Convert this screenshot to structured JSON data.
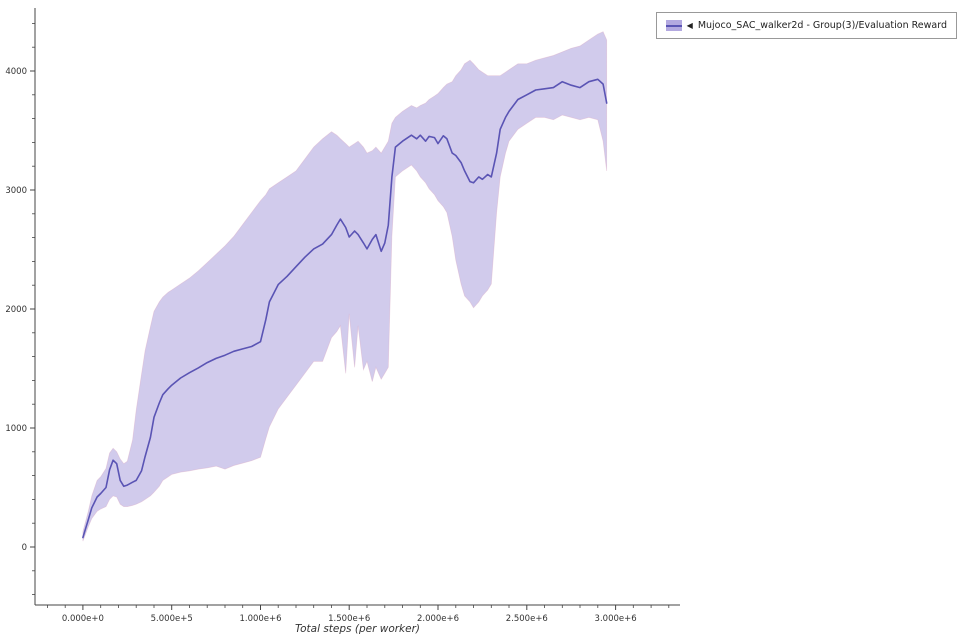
{
  "page": {
    "background": "#ffffff"
  },
  "legend": {
    "marker": "◀",
    "label": "Mujoco_SAC_walker2d - Group(3)/Evaluation Reward"
  },
  "axis": {
    "color": "#444444",
    "tick_label_color": "#333333"
  },
  "chart_data": {
    "type": "line",
    "title": "",
    "xlabel": "Total steps (per worker)",
    "ylabel": "",
    "grid": false,
    "legend_position": "top-right-outside",
    "xlim": [
      -270000,
      3363000
    ],
    "ylim": [
      -487,
      4529
    ],
    "xticks": {
      "values": [
        0,
        500000,
        1000000,
        1500000,
        2000000,
        2500000,
        3000000
      ],
      "labels": [
        "0.000e+0",
        "5.000e+5",
        "1.000e+6",
        "1.500e+6",
        "2.000e+6",
        "2.500e+6",
        "3.000e+6"
      ]
    },
    "yticks": {
      "values": [
        0,
        1000,
        2000,
        3000,
        4000
      ],
      "labels": [
        "0",
        "1000",
        "2000",
        "3000",
        "4000"
      ]
    },
    "minor_x_step": 100000,
    "minor_y_step": 200,
    "series": [
      {
        "name": "Mujoco_SAC_walker2d - Group(3)/Evaluation Reward",
        "color": "#5a54b4",
        "band_color": "#b3a9e0",
        "band_opacity": 0.6,
        "band_edge_color": "#d9a8c4",
        "x": [
          0,
          30000,
          50000,
          80000,
          100000,
          130000,
          150000,
          170000,
          190000,
          210000,
          230000,
          250000,
          280000,
          300000,
          330000,
          350000,
          380000,
          400000,
          430000,
          450000,
          480000,
          500000,
          550000,
          600000,
          650000,
          700000,
          750000,
          800000,
          850000,
          900000,
          950000,
          1000000,
          1030000,
          1050000,
          1100000,
          1150000,
          1200000,
          1250000,
          1300000,
          1350000,
          1400000,
          1430000,
          1450000,
          1480000,
          1500000,
          1530000,
          1550000,
          1580000,
          1600000,
          1630000,
          1650000,
          1680000,
          1700000,
          1720000,
          1740000,
          1760000,
          1800000,
          1850000,
          1880000,
          1900000,
          1930000,
          1950000,
          1980000,
          2000000,
          2030000,
          2050000,
          2080000,
          2100000,
          2130000,
          2150000,
          2180000,
          2200000,
          2230000,
          2250000,
          2280000,
          2300000,
          2330000,
          2350000,
          2380000,
          2400000,
          2450000,
          2500000,
          2550000,
          2600000,
          2650000,
          2700000,
          2750000,
          2800000,
          2850000,
          2900000,
          2930000,
          2950000
        ],
        "mean": [
          80,
          230,
          330,
          420,
          450,
          500,
          650,
          730,
          700,
          560,
          510,
          520,
          545,
          560,
          640,
          760,
          920,
          1090,
          1210,
          1280,
          1330,
          1360,
          1420,
          1465,
          1505,
          1550,
          1585,
          1612,
          1645,
          1665,
          1685,
          1725,
          1910,
          2060,
          2205,
          2275,
          2355,
          2435,
          2505,
          2545,
          2625,
          2705,
          2755,
          2685,
          2605,
          2655,
          2625,
          2555,
          2505,
          2585,
          2625,
          2485,
          2555,
          2705,
          3110,
          3360,
          3410,
          3460,
          3430,
          3460,
          3410,
          3450,
          3440,
          3390,
          3455,
          3430,
          3310,
          3290,
          3230,
          3160,
          3070,
          3060,
          3110,
          3090,
          3130,
          3110,
          3310,
          3510,
          3610,
          3660,
          3760,
          3800,
          3840,
          3850,
          3860,
          3910,
          3880,
          3860,
          3910,
          3930,
          3890,
          3730
        ],
        "lower": [
          50,
          170,
          240,
          300,
          320,
          340,
          400,
          430,
          420,
          360,
          340,
          340,
          350,
          360,
          380,
          400,
          430,
          460,
          510,
          560,
          590,
          610,
          630,
          640,
          655,
          665,
          680,
          655,
          685,
          705,
          725,
          755,
          910,
          1010,
          1160,
          1260,
          1360,
          1460,
          1560,
          1560,
          1760,
          1810,
          1860,
          1460,
          1960,
          1510,
          1860,
          1490,
          1560,
          1390,
          1510,
          1410,
          1460,
          1510,
          2610,
          3110,
          3160,
          3210,
          3160,
          3110,
          3060,
          3010,
          2960,
          2910,
          2860,
          2810,
          2610,
          2410,
          2210,
          2110,
          2060,
          2010,
          2060,
          2110,
          2160,
          2210,
          2810,
          3110,
          3310,
          3410,
          3510,
          3560,
          3610,
          3610,
          3590,
          3630,
          3610,
          3590,
          3610,
          3590,
          3410,
          3160
        ],
        "upper": [
          130,
          300,
          430,
          560,
          590,
          660,
          790,
          830,
          800,
          740,
          700,
          720,
          900,
          1150,
          1450,
          1650,
          1850,
          1980,
          2060,
          2100,
          2140,
          2160,
          2210,
          2260,
          2320,
          2390,
          2460,
          2530,
          2610,
          2710,
          2810,
          2910,
          2960,
          3010,
          3060,
          3110,
          3160,
          3260,
          3360,
          3430,
          3490,
          3460,
          3430,
          3390,
          3360,
          3390,
          3410,
          3360,
          3310,
          3330,
          3360,
          3310,
          3360,
          3410,
          3560,
          3610,
          3660,
          3710,
          3690,
          3710,
          3730,
          3760,
          3790,
          3810,
          3860,
          3890,
          3910,
          3960,
          4010,
          4060,
          4090,
          4060,
          4010,
          3990,
          3960,
          3960,
          3960,
          3960,
          3990,
          4010,
          4060,
          4060,
          4090,
          4110,
          4130,
          4160,
          4190,
          4210,
          4260,
          4310,
          4330,
          4260
        ]
      }
    ]
  }
}
